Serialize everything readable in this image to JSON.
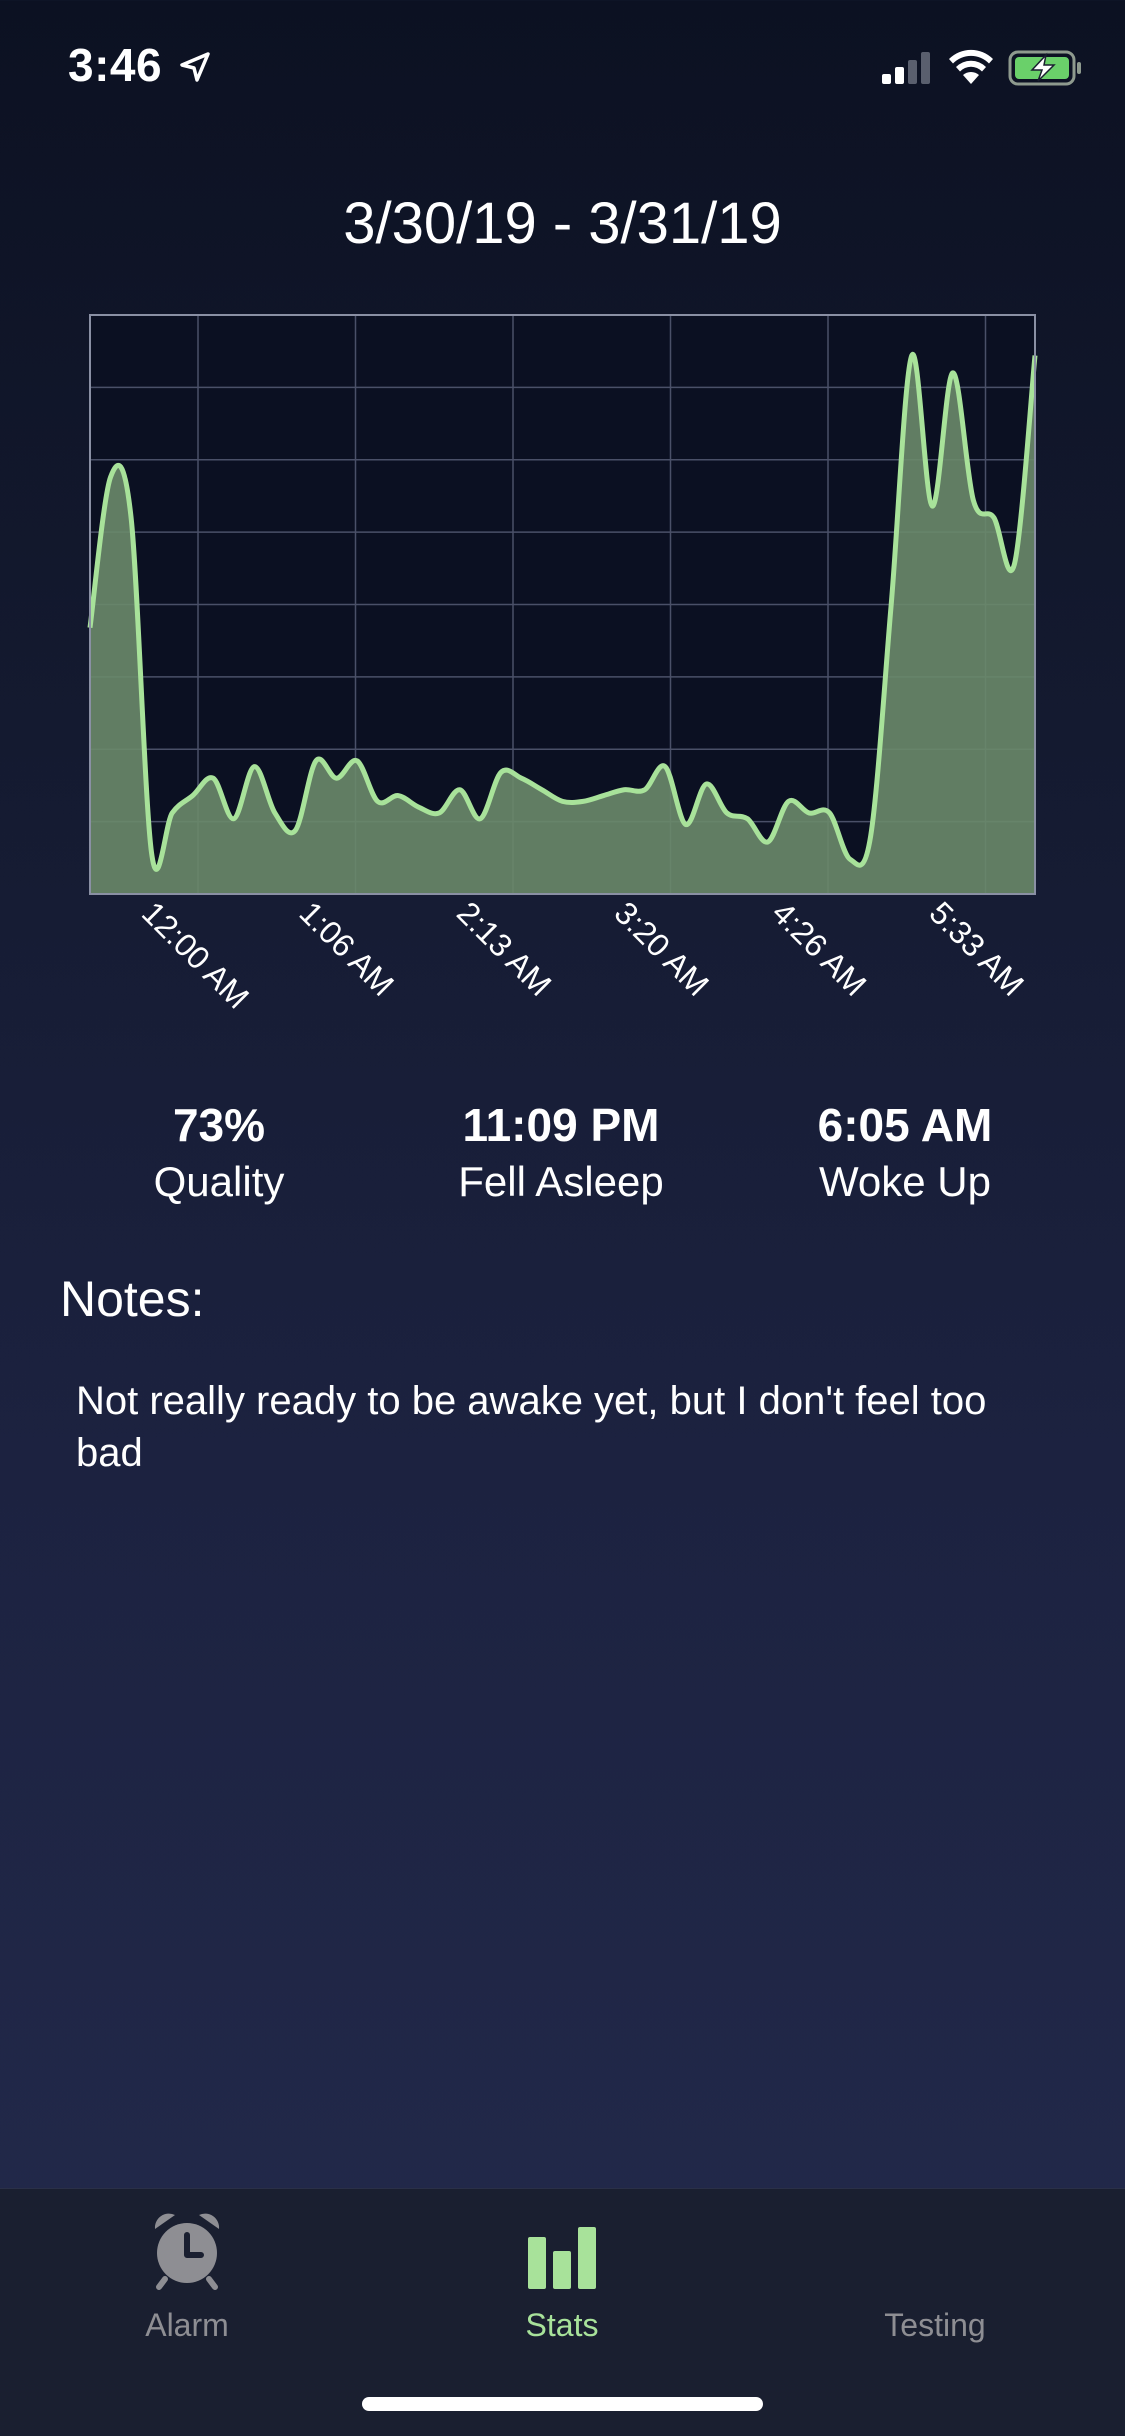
{
  "status_bar": {
    "time": "3:46"
  },
  "header": {
    "date_range": "3/30/19 - 3/31/19"
  },
  "chart_data": {
    "type": "area",
    "x_tick_labels": [
      "12:00 AM",
      "1:06 AM",
      "2:13 AM",
      "3:20 AM",
      "4:26 AM",
      "5:33 AM"
    ],
    "grid": true,
    "line_color": "#a8e29a",
    "fill_color": "#6a8a6a",
    "ylim": [
      0,
      100
    ],
    "values": [
      46,
      72,
      65,
      7,
      14,
      17,
      20,
      13,
      22,
      14,
      11,
      23,
      20,
      23,
      16,
      17,
      15,
      14,
      18,
      13,
      21,
      20,
      18,
      16,
      16,
      17,
      18,
      18,
      22,
      12,
      19,
      14,
      13,
      9,
      16,
      14,
      14,
      6,
      10,
      50,
      93,
      67,
      90,
      68,
      65,
      57,
      93
    ]
  },
  "stats": {
    "quality_value": "73%",
    "quality_label": "Quality",
    "asleep_value": "11:09 PM",
    "asleep_label": "Fell Asleep",
    "woke_value": "6:05 AM",
    "woke_label": "Woke Up"
  },
  "notes": {
    "heading": "Notes:",
    "text": "Not really ready to be awake yet, but I don't feel too bad"
  },
  "tabs": [
    {
      "label": "Alarm",
      "icon": "alarm-clock-icon",
      "active": false
    },
    {
      "label": "Stats",
      "icon": "bar-chart-icon",
      "active": true
    },
    {
      "label": "Testing",
      "icon": "none",
      "active": false
    }
  ],
  "colors": {
    "accent": "#a8e29a",
    "inactive": "#8e8e93"
  }
}
